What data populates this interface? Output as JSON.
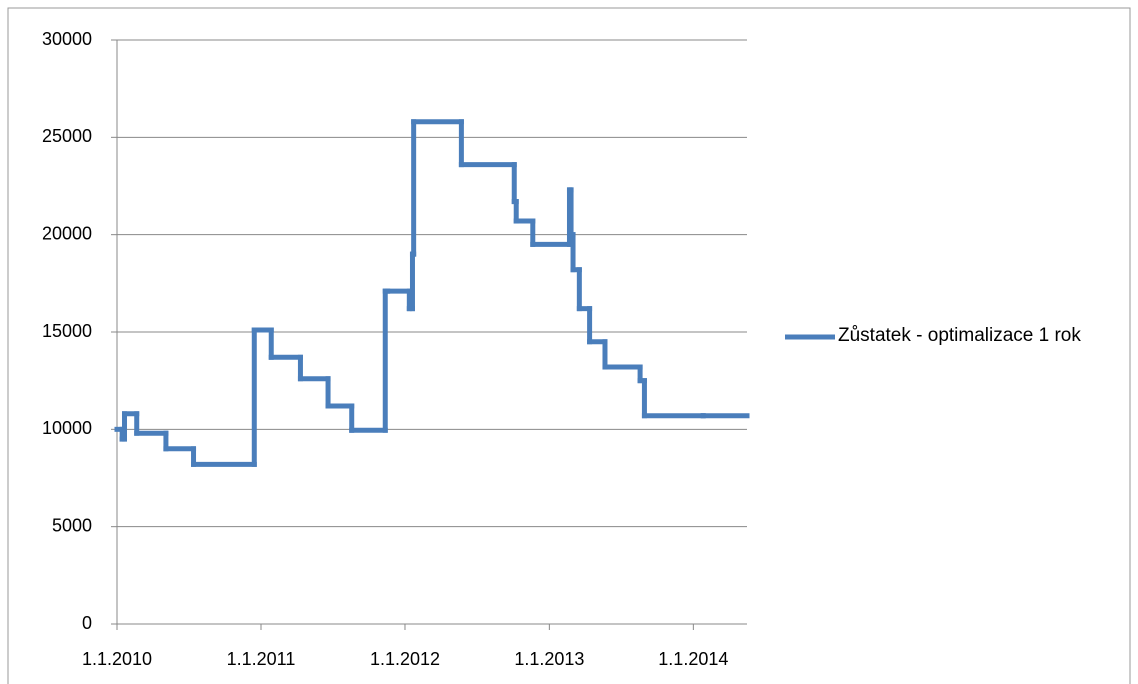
{
  "chart_data": {
    "type": "line",
    "step": "after",
    "x": [
      "2010-01-01",
      "2010-01-14",
      "2010-01-20",
      "2010-02-20",
      "2010-05-05",
      "2010-07-14",
      "2010-12-15",
      "2011-01-27",
      "2011-04-11",
      "2011-06-20",
      "2011-08-19",
      "2011-11-12",
      "2011-11-18",
      "2012-01-12",
      "2012-01-20",
      "2012-01-23",
      "2012-05-23",
      "2012-10-04",
      "2012-10-09",
      "2012-11-20",
      "2013-02-21",
      "2013-02-25",
      "2013-03-02",
      "2013-03-18",
      "2013-04-13",
      "2013-05-22",
      "2013-08-19",
      "2013-08-30",
      "2014-01-26"
    ],
    "series": [
      {
        "name": "Zůstatek - optimalizace 1 rok",
        "color": "#4a7ebb",
        "values": [
          10000,
          9500,
          10800,
          9800,
          9000,
          8200,
          15100,
          13700,
          12600,
          11200,
          9950,
          17100,
          17100,
          16200,
          19000,
          25800,
          23600,
          21700,
          20700,
          19500,
          22300,
          20000,
          18200,
          16200,
          14500,
          13200,
          12500,
          10700,
          10700
        ]
      }
    ],
    "xlim": [
      "2010-01-01",
      "2014-05-17"
    ],
    "xticks": [
      {
        "value": "2010-01-01",
        "label": "1.1.2010"
      },
      {
        "value": "2011-01-01",
        "label": "1.1.2011"
      },
      {
        "value": "2012-01-01",
        "label": "1.1.2012"
      },
      {
        "value": "2013-01-01",
        "label": "1.1.2013"
      },
      {
        "value": "2014-01-01",
        "label": "1.1.2014"
      }
    ],
    "ylim": [
      0,
      30000
    ],
    "yticks": [
      0,
      5000,
      10000,
      15000,
      20000,
      25000,
      30000
    ],
    "grid": true,
    "legend": "right"
  }
}
